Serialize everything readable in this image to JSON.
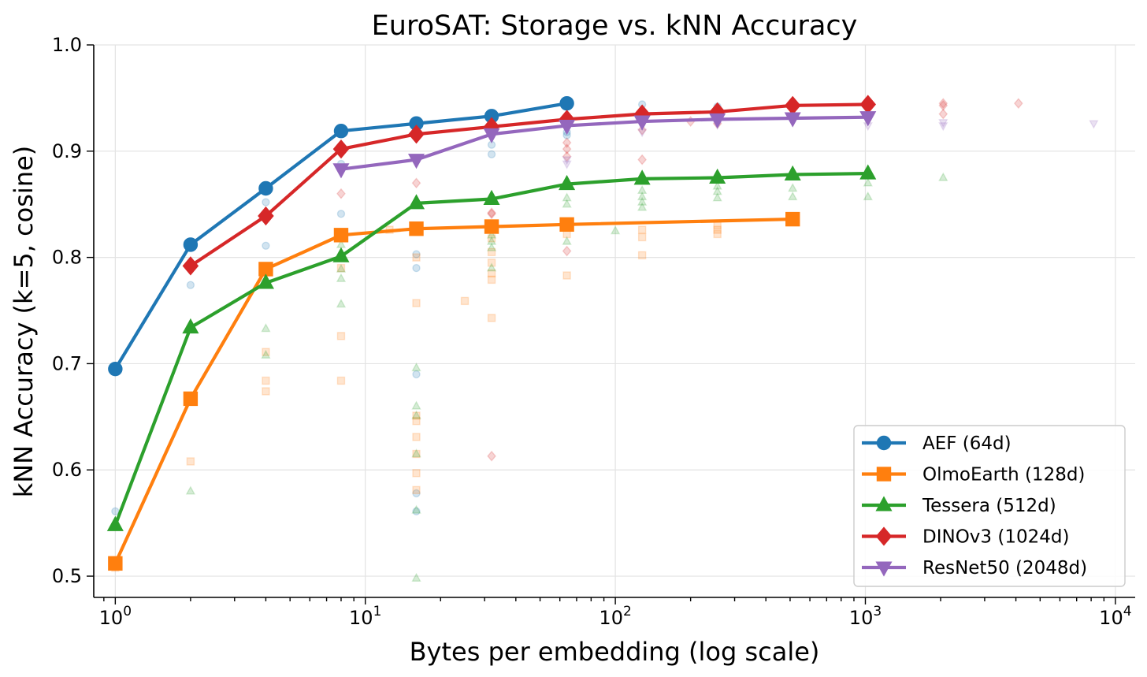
{
  "chart_data": {
    "type": "line",
    "title": "EuroSAT: Storage vs. kNN Accuracy",
    "xlabel": "Bytes per embedding (log scale)",
    "ylabel": "kNN Accuracy (k=5, cosine)",
    "xscale": "log",
    "xlim": [
      0.82,
      12000
    ],
    "ylim": [
      0.48,
      1.0
    ],
    "x_ticks": [
      {
        "value": 1,
        "base": "10",
        "exp": "0"
      },
      {
        "value": 10,
        "base": "10",
        "exp": "1"
      },
      {
        "value": 100,
        "base": "10",
        "exp": "2"
      },
      {
        "value": 1000,
        "base": "10",
        "exp": "3"
      },
      {
        "value": 10000,
        "base": "10",
        "exp": "4"
      }
    ],
    "y_ticks": [
      {
        "value": 0.5,
        "label": "0.5"
      },
      {
        "value": 0.6,
        "label": "0.6"
      },
      {
        "value": 0.7,
        "label": "0.7"
      },
      {
        "value": 0.8,
        "label": "0.8"
      },
      {
        "value": 0.9,
        "label": "0.9"
      },
      {
        "value": 1.0,
        "label": "1.0"
      }
    ],
    "grid": true,
    "legend_position": "lower-right",
    "series": [
      {
        "name": "AEF (64d)",
        "color": "#1f77b4",
        "marker": "circle",
        "x": [
          1,
          2,
          4,
          8,
          16,
          32,
          64
        ],
        "y": [
          0.695,
          0.812,
          0.865,
          0.919,
          0.926,
          0.933,
          0.945
        ]
      },
      {
        "name": "OlmoEarth (128d)",
        "color": "#ff7f0e",
        "marker": "square",
        "x": [
          1,
          2,
          4,
          8,
          16,
          32,
          64,
          512
        ],
        "y": [
          0.512,
          0.667,
          0.789,
          0.821,
          0.827,
          0.829,
          0.831,
          0.836
        ]
      },
      {
        "name": "Tessera (512d)",
        "color": "#2ca02c",
        "marker": "triangle-up",
        "x": [
          1,
          2,
          4,
          8,
          16,
          32,
          64,
          128,
          256,
          512,
          1024
        ],
        "y": [
          0.548,
          0.734,
          0.776,
          0.801,
          0.851,
          0.855,
          0.869,
          0.874,
          0.875,
          0.878,
          0.879
        ]
      },
      {
        "name": "DINOv3 (1024d)",
        "color": "#d62728",
        "marker": "diamond",
        "x": [
          2,
          4,
          8,
          16,
          32,
          64,
          128,
          256,
          512,
          1024
        ],
        "y": [
          0.792,
          0.839,
          0.902,
          0.916,
          0.923,
          0.93,
          0.935,
          0.937,
          0.943,
          0.944
        ]
      },
      {
        "name": "ResNet50 (2048d)",
        "color": "#9467bd",
        "marker": "triangle-down",
        "x": [
          8,
          16,
          32,
          64,
          128,
          256,
          512,
          1024
        ],
        "y": [
          0.883,
          0.892,
          0.916,
          0.924,
          0.928,
          0.93,
          0.931,
          0.932
        ]
      }
    ],
    "background_points": [
      {
        "series": "AEF (64d)",
        "color": "#1f77b4",
        "marker": "circle",
        "points": [
          [
            1,
            0.561
          ],
          [
            2,
            0.774
          ],
          [
            4,
            0.852
          ],
          [
            4,
            0.811
          ],
          [
            8,
            0.841
          ],
          [
            8,
            0.888
          ],
          [
            16,
            0.803
          ],
          [
            16,
            0.79
          ],
          [
            16,
            0.69
          ],
          [
            16,
            0.578
          ],
          [
            16,
            0.561
          ],
          [
            32,
            0.906
          ],
          [
            32,
            0.897
          ],
          [
            64,
            0.915
          ],
          [
            64,
            0.918
          ],
          [
            128,
            0.944
          ],
          [
            128,
            0.938
          ],
          [
            256,
            0.942
          ],
          [
            512,
            0.943
          ],
          [
            1024,
            0.942
          ]
        ]
      },
      {
        "series": "OlmoEarth (128d)",
        "color": "#ff7f0e",
        "marker": "square",
        "points": [
          [
            1,
            0.508
          ],
          [
            2,
            0.608
          ],
          [
            4,
            0.711
          ],
          [
            4,
            0.684
          ],
          [
            4,
            0.674
          ],
          [
            8,
            0.79
          ],
          [
            8,
            0.726
          ],
          [
            8,
            0.684
          ],
          [
            12.5,
            0.826
          ],
          [
            16,
            0.8
          ],
          [
            16,
            0.757
          ],
          [
            16,
            0.651
          ],
          [
            16,
            0.646
          ],
          [
            16,
            0.631
          ],
          [
            16,
            0.615
          ],
          [
            16,
            0.597
          ],
          [
            16,
            0.581
          ],
          [
            25,
            0.759
          ],
          [
            32,
            0.818
          ],
          [
            32,
            0.805
          ],
          [
            32,
            0.795
          ],
          [
            32,
            0.785
          ],
          [
            32,
            0.779
          ],
          [
            32,
            0.743
          ],
          [
            64,
            0.822
          ],
          [
            64,
            0.783
          ],
          [
            128,
            0.826
          ],
          [
            128,
            0.819
          ],
          [
            128,
            0.802
          ],
          [
            256,
            0.83
          ],
          [
            256,
            0.826
          ],
          [
            256,
            0.822
          ]
        ]
      },
      {
        "series": "Tessera (512d)",
        "color": "#2ca02c",
        "marker": "triangle-up",
        "points": [
          [
            2,
            0.58
          ],
          [
            4,
            0.733
          ],
          [
            4,
            0.708
          ],
          [
            8,
            0.812
          ],
          [
            8,
            0.789
          ],
          [
            8,
            0.78
          ],
          [
            8,
            0.756
          ],
          [
            16,
            0.696
          ],
          [
            16,
            0.66
          ],
          [
            16,
            0.651
          ],
          [
            16,
            0.615
          ],
          [
            16,
            0.562
          ],
          [
            16,
            0.498
          ],
          [
            32,
            0.821
          ],
          [
            32,
            0.815
          ],
          [
            32,
            0.809
          ],
          [
            32,
            0.79
          ],
          [
            64,
            0.856
          ],
          [
            64,
            0.85
          ],
          [
            64,
            0.815
          ],
          [
            100,
            0.825
          ],
          [
            128,
            0.863
          ],
          [
            128,
            0.857
          ],
          [
            128,
            0.852
          ],
          [
            128,
            0.847
          ],
          [
            256,
            0.867
          ],
          [
            256,
            0.862
          ],
          [
            256,
            0.856
          ],
          [
            512,
            0.865
          ],
          [
            512,
            0.857
          ],
          [
            1024,
            0.87
          ],
          [
            1024,
            0.857
          ],
          [
            2048,
            0.875
          ]
        ]
      },
      {
        "series": "DINOv3 (1024d)",
        "color": "#d62728",
        "marker": "diamond",
        "points": [
          [
            8,
            0.86
          ],
          [
            16,
            0.87
          ],
          [
            32,
            0.842
          ],
          [
            32,
            0.841
          ],
          [
            32,
            0.613
          ],
          [
            64,
            0.908
          ],
          [
            64,
            0.902
          ],
          [
            64,
            0.895
          ],
          [
            64,
            0.806
          ],
          [
            128,
            0.92
          ],
          [
            128,
            0.892
          ],
          [
            200,
            0.928
          ],
          [
            256,
            0.926
          ],
          [
            2048,
            0.945
          ],
          [
            2048,
            0.943
          ],
          [
            2048,
            0.935
          ],
          [
            4096,
            0.945
          ]
        ]
      },
      {
        "series": "ResNet50 (2048d)",
        "color": "#9467bd",
        "marker": "triangle-down",
        "points": [
          [
            64,
            0.892
          ],
          [
            64,
            0.888
          ],
          [
            128,
            0.918
          ],
          [
            256,
            0.925
          ],
          [
            512,
            0.928
          ],
          [
            1024,
            0.924
          ],
          [
            2048,
            0.927
          ],
          [
            2048,
            0.924
          ],
          [
            8192,
            0.926
          ]
        ]
      }
    ]
  }
}
